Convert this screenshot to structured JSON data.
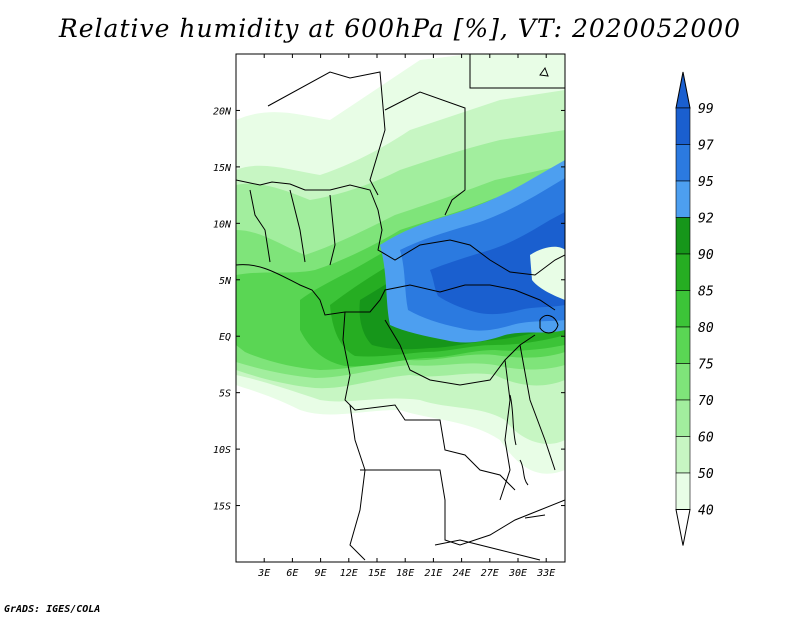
{
  "title": "Relative humidity at 600hPa [%], VT: 2020052000",
  "credit": "GrADS: IGES/COLA",
  "colors": {
    "c40": "#ffffff",
    "c50": "#e8fde6",
    "c60": "#c7f6c3",
    "c70": "#a2ee9e",
    "c75": "#7fe47a",
    "c80": "#5ad654",
    "c85": "#3cc438",
    "c90": "#26ad22",
    "c92": "#16961a",
    "c95": "#4d9ff0",
    "c97": "#2b7ae0",
    "c99": "#1a5fcf",
    "boundary": "#000000"
  },
  "map": {
    "lon_range": [
      0,
      35
    ],
    "lat_range": [
      -20,
      25
    ],
    "lon_ticks": [
      "3E",
      "6E",
      "9E",
      "12E",
      "15E",
      "18E",
      "21E",
      "24E",
      "27E",
      "30E",
      "33E"
    ],
    "lon_values": [
      3,
      6,
      9,
      12,
      15,
      18,
      21,
      24,
      27,
      30,
      33
    ],
    "lat_ticks": [
      "20N",
      "15N",
      "10N",
      "5N",
      "EQ",
      "5S",
      "10S",
      "15S"
    ],
    "lat_values": [
      20,
      15,
      10,
      5,
      0,
      -5,
      -10,
      -15
    ]
  },
  "colorbar": {
    "levels": [
      "40",
      "50",
      "60",
      "70",
      "75",
      "80",
      "85",
      "90",
      "92",
      "95",
      "97",
      "99"
    ],
    "colors": [
      "#e8fde6",
      "#c7f6c3",
      "#a2ee9e",
      "#7fe47a",
      "#5ad654",
      "#3cc438",
      "#26ad22",
      "#16961a",
      "#4d9ff0",
      "#2b7ae0",
      "#1a5fcf"
    ],
    "below_color": "#ffffff",
    "above_color": "#1a5fcf"
  }
}
